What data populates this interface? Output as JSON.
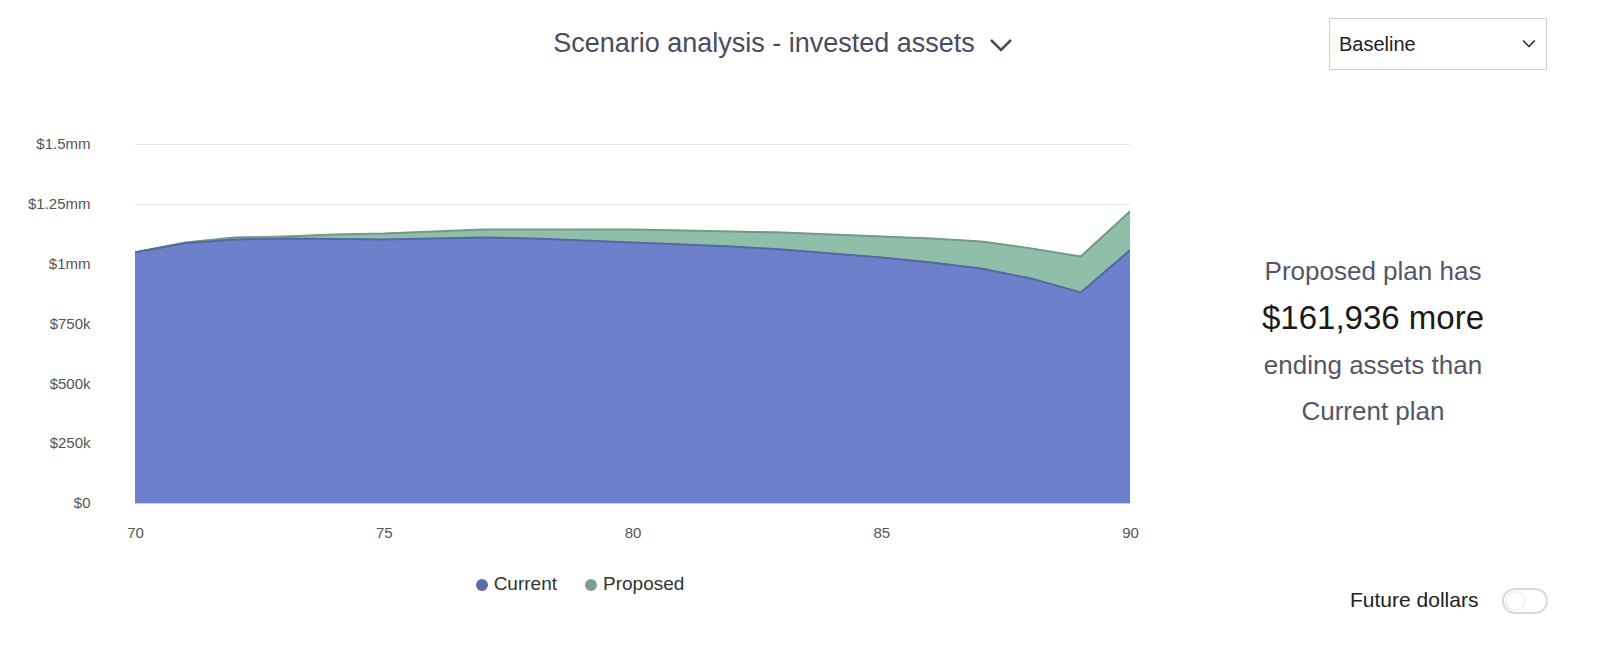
{
  "chart_data": {
    "type": "area",
    "title": "Scenario analysis - invested assets",
    "dropdown": "Baseline",
    "toggle": "Future dollars",
    "annotation": [
      "Proposed plan has",
      "$161,936 more",
      "ending assets than",
      "Current plan"
    ],
    "x": [
      70,
      71,
      72,
      73,
      74,
      75,
      76,
      77,
      78,
      79,
      80,
      81,
      82,
      83,
      84,
      85,
      86,
      87,
      88,
      89,
      90
    ],
    "series": [
      {
        "name": "Current",
        "color": "#6c80cc",
        "values": [
          1050000,
          1087000,
          1103000,
          1107000,
          1105000,
          1103000,
          1107000,
          1111000,
          1107000,
          1099000,
          1091000,
          1082000,
          1074000,
          1061000,
          1045000,
          1028000,
          1007000,
          982000,
          940000,
          882000,
          1060000
        ]
      },
      {
        "name": "Proposed",
        "color": "#8fbfa8",
        "values": [
          1050000,
          1091000,
          1111000,
          1116000,
          1124000,
          1128000,
          1137000,
          1145000,
          1145000,
          1145000,
          1145000,
          1141000,
          1137000,
          1132000,
          1124000,
          1116000,
          1107000,
          1095000,
          1066000,
          1032000,
          1221936
        ]
      }
    ],
    "stacked": false,
    "xlim": [
      70,
      90
    ],
    "xticks": [
      70,
      75,
      80,
      85,
      90
    ],
    "ylim": [
      0,
      1500000
    ],
    "yticks": [
      {
        "value": 0,
        "label": "$0"
      },
      {
        "value": 250000,
        "label": "$250k"
      },
      {
        "value": 500000,
        "label": "$500k"
      },
      {
        "value": 750000,
        "label": "$750k"
      },
      {
        "value": 1000000,
        "label": "$1mm"
      },
      {
        "value": 1250000,
        "label": "$1.25mm"
      },
      {
        "value": 1500000,
        "label": "$1.5mm"
      }
    ],
    "grid": true,
    "legend": "bottom"
  }
}
